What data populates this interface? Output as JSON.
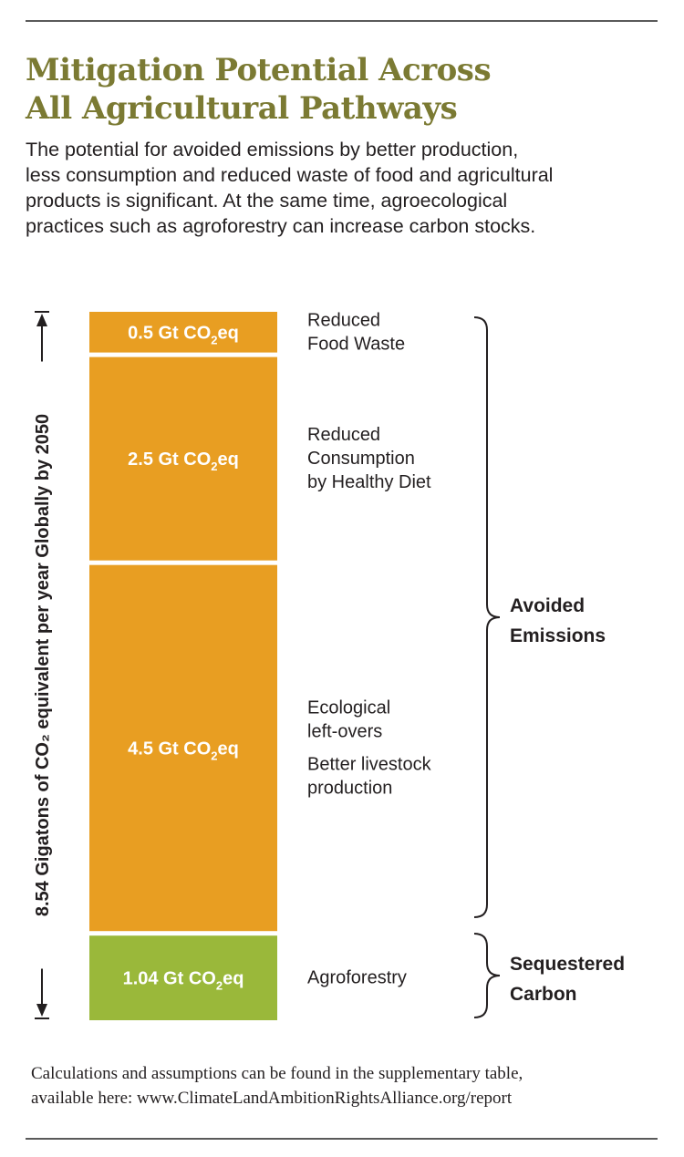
{
  "title_lines": [
    "Mitigation Potential Across",
    "All Agricultural Pathways"
  ],
  "intro_lines": [
    "The potential for avoided emissions by better production,",
    "less consumption and reduced waste of food and agricultural",
    "products is significant. At the same time, agroecological",
    "practices such as agroforestry can increase carbon stocks."
  ],
  "footnote_lines": [
    "Calculations and assumptions can be found in the supplementary table,",
    "available here: www.ClimateLandAmbitionRightsAlliance.org/report"
  ],
  "colors": {
    "title": "#7b7a33",
    "orange": "#e89e22",
    "green": "#9ab83a",
    "text": "#231f20"
  },
  "chart_data": {
    "type": "bar",
    "stacked": true,
    "total_label": "8.54 Gigatons of CO₂ equivalent per year Globally by 2050",
    "total": 8.54,
    "unit_prefix": "Gt CO",
    "unit_sub": "2",
    "unit_suffix": "eq",
    "segments": [
      {
        "value": 0.5,
        "value_label": "0.5",
        "labels": [
          [
            "Reduced",
            "Food Waste"
          ]
        ],
        "color": "#e89e22",
        "group": 0
      },
      {
        "value": 2.5,
        "value_label": "2.5",
        "labels": [
          [
            "Reduced",
            "Consumption",
            "by Healthy Diet"
          ]
        ],
        "color": "#e89e22",
        "group": 0
      },
      {
        "value": 4.5,
        "value_label": "4.5",
        "labels": [
          [
            "Ecological",
            "left-overs"
          ],
          [
            "Better livestock",
            "production"
          ]
        ],
        "color": "#e89e22",
        "group": 0
      },
      {
        "value": 1.04,
        "value_label": "1.04",
        "labels": [
          [
            "Agroforestry"
          ]
        ],
        "color": "#9ab83a",
        "group": 1
      }
    ],
    "groups": [
      {
        "name_lines": [
          "Avoided",
          "Emissions"
        ]
      },
      {
        "name_lines": [
          "Sequestered",
          "Carbon"
        ]
      }
    ]
  }
}
